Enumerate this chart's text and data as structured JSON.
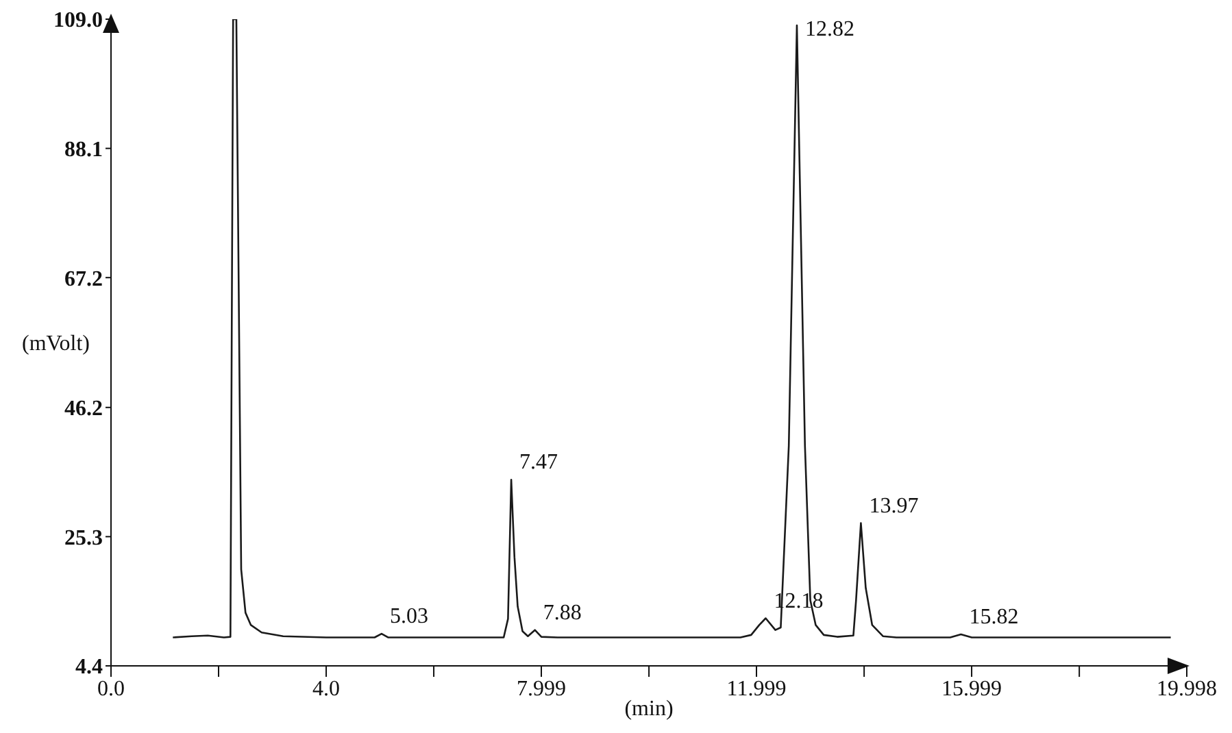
{
  "chart_data": {
    "type": "line",
    "xlabel": "(min)",
    "ylabel": "(mVolt)",
    "series": [
      {
        "color": "#1a1a1a",
        "x": [
          1.15,
          1.5,
          1.8,
          2.1,
          2.22,
          2.27,
          2.33,
          2.42,
          2.5,
          2.6,
          2.8,
          3.2,
          4.0,
          4.9,
          5.03,
          5.15,
          7.3,
          7.38,
          7.44,
          7.5,
          7.56,
          7.65,
          7.75,
          7.88,
          8.0,
          8.3,
          10.0,
          11.7,
          11.9,
          12.05,
          12.17,
          12.35,
          12.45,
          12.6,
          12.75,
          12.9,
          13.0,
          13.1,
          13.25,
          13.5,
          13.8,
          13.85,
          13.94,
          14.03,
          14.15,
          14.35,
          14.6,
          15.6,
          15.8,
          16.0,
          19.7
        ],
        "values": [
          9.0,
          9.2,
          9.3,
          9.0,
          9.1,
          109,
          109,
          20,
          13,
          11,
          9.8,
          9.2,
          9.0,
          9.0,
          9.6,
          9.0,
          9.0,
          12,
          34.5,
          22,
          14,
          10,
          9.2,
          10.2,
          9.1,
          9.0,
          9.0,
          9.0,
          9.4,
          11,
          12.1,
          10.2,
          10.6,
          40,
          108,
          40,
          15,
          11,
          9.4,
          9.1,
          9.3,
          15,
          27.5,
          17,
          11,
          9.2,
          9.0,
          9.0,
          9.5,
          9.0,
          9.0
        ]
      }
    ],
    "annotations": [
      {
        "text": "5.03",
        "x": 5.03,
        "y": 9.6
      },
      {
        "text": "7.47",
        "x": 7.44,
        "y": 34.5
      },
      {
        "text": "7.88",
        "x": 7.88,
        "y": 10.2
      },
      {
        "text": "12.18",
        "x": 12.17,
        "y": 12.1
      },
      {
        "text": "12.82",
        "x": 12.75,
        "y": 108
      },
      {
        "text": "13.97",
        "x": 13.94,
        "y": 27.5
      },
      {
        "text": "15.82",
        "x": 15.8,
        "y": 9.5
      }
    ],
    "xlim": [
      0,
      19.998
    ],
    "xticks": [
      {
        "value": 0,
        "label": "0.0"
      },
      {
        "value": 2,
        "label": null
      },
      {
        "value": 4,
        "label": "4.0"
      },
      {
        "value": 6,
        "label": null
      },
      7.999,
      {
        "value": 10,
        "label": null
      },
      11.999,
      {
        "value": 14,
        "label": null
      },
      15.999,
      {
        "value": 18,
        "label": null
      },
      19.998
    ],
    "ylim": [
      4.4,
      109
    ],
    "yticks": [
      4.4,
      25.3,
      46.2,
      67.2,
      88.1,
      {
        "value": 109,
        "label": "109.0"
      }
    ],
    "grid": false,
    "legend": false,
    "marker": "none",
    "line_style": "solid"
  }
}
